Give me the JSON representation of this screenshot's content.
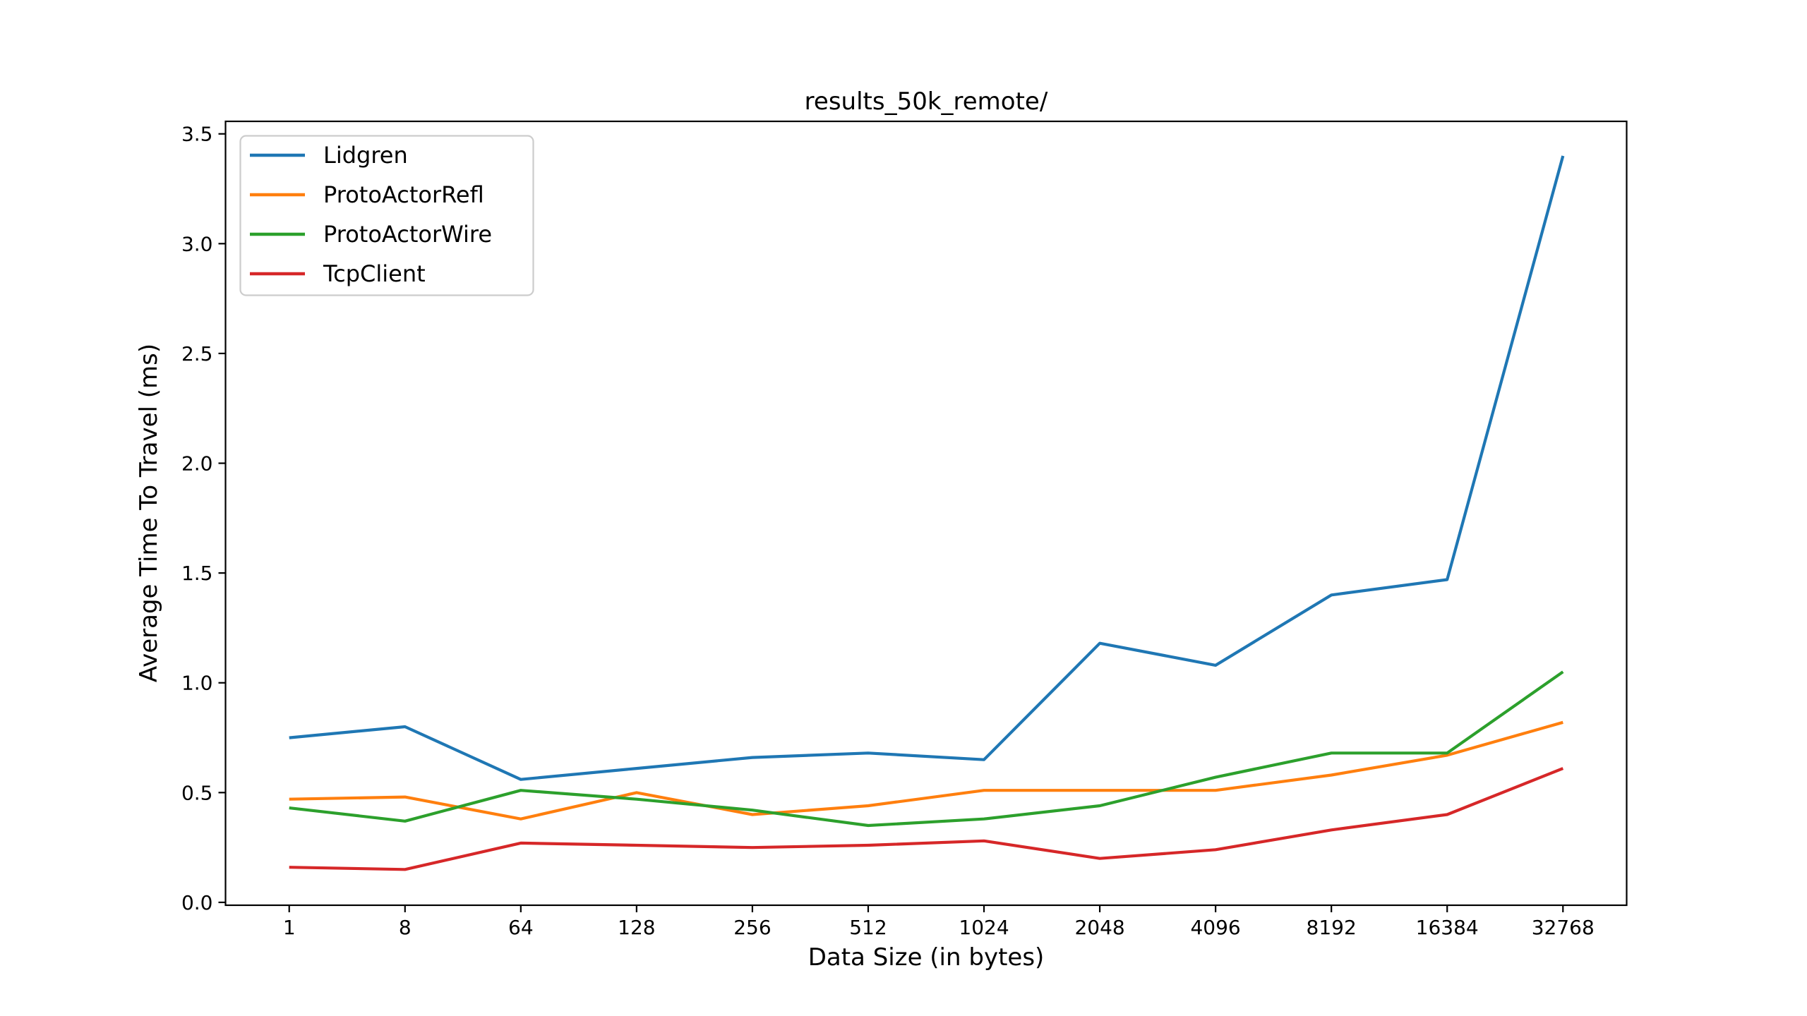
{
  "chart_data": {
    "type": "line",
    "title": "results_50k_remote/",
    "xlabel": "Data Size (in bytes)",
    "ylabel": "Average Time To Travel (ms)",
    "categories": [
      "1",
      "8",
      "64",
      "128",
      "256",
      "512",
      "1024",
      "2048",
      "4096",
      "8192",
      "16384",
      "32768"
    ],
    "series": [
      {
        "name": "Lidgren",
        "color": "#1f77b4",
        "values": [
          0.75,
          0.8,
          0.56,
          0.61,
          0.66,
          0.68,
          0.65,
          1.18,
          1.08,
          1.4,
          1.47,
          3.4
        ]
      },
      {
        "name": "ProtoActorRefl",
        "color": "#ff7f0e",
        "values": [
          0.47,
          0.48,
          0.38,
          0.5,
          0.4,
          0.44,
          0.51,
          0.51,
          0.51,
          0.58,
          0.67,
          0.82
        ]
      },
      {
        "name": "ProtoActorWire",
        "color": "#2ca02c",
        "values": [
          0.43,
          0.37,
          0.51,
          0.47,
          0.42,
          0.35,
          0.38,
          0.44,
          0.57,
          0.68,
          0.68,
          1.05
        ]
      },
      {
        "name": "TcpClient",
        "color": "#d62728",
        "values": [
          0.16,
          0.15,
          0.27,
          0.26,
          0.25,
          0.26,
          0.28,
          0.2,
          0.24,
          0.33,
          0.4,
          0.61
        ]
      }
    ],
    "y_tick_labels": [
      "0.0",
      "0.5",
      "1.0",
      "1.5",
      "2.0",
      "2.5",
      "3.0",
      "3.5"
    ],
    "xlim": [
      -0.55,
      11.55
    ],
    "ylim": [
      -0.013,
      3.557
    ],
    "grid": false,
    "legend_position": "upper left",
    "axis_color": "#000000",
    "legend_border_color": "#cccccc"
  }
}
